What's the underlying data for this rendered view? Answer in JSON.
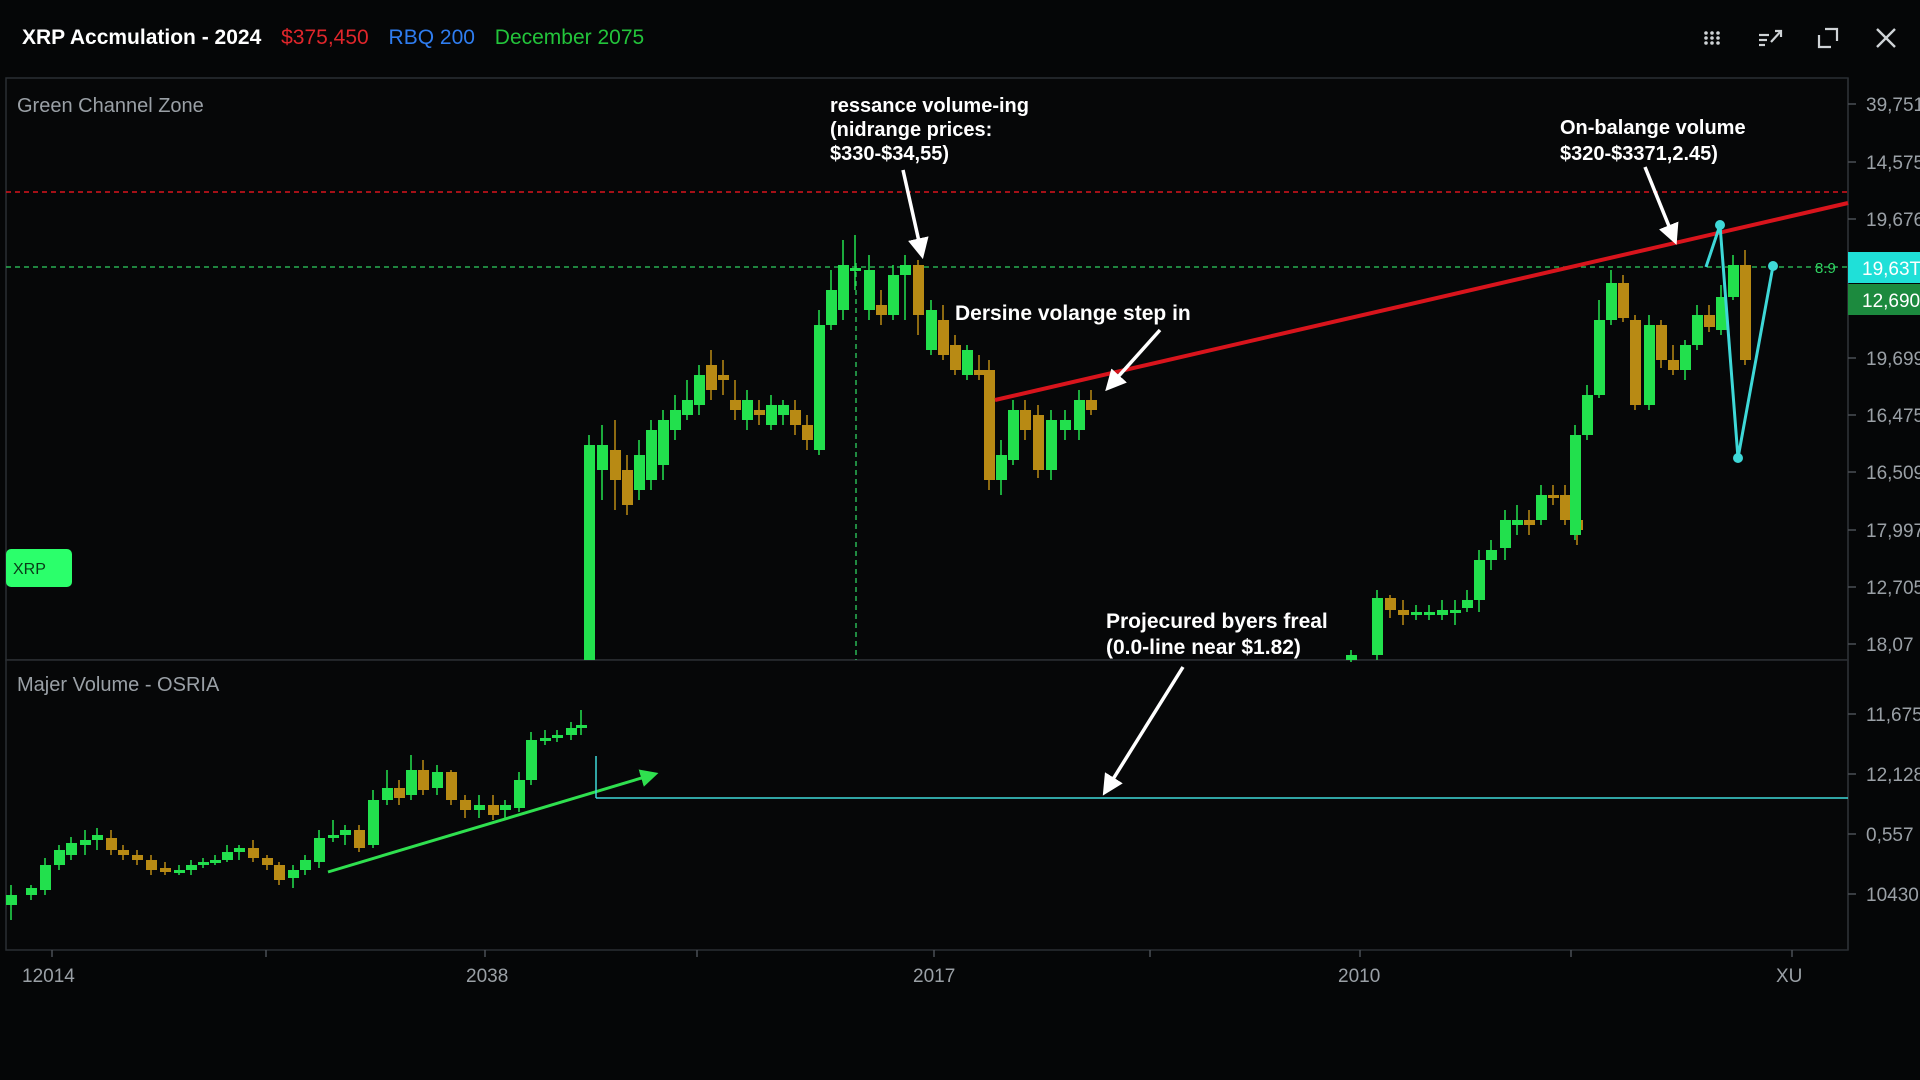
{
  "header": {
    "title": "XRP Accmulation - 2024",
    "price": "$375,450",
    "rbq": "RBQ 200",
    "date": "December 2075",
    "icons": [
      "grid-icon",
      "indicator-icon",
      "fullscreen-icon",
      "close-icon"
    ]
  },
  "colors": {
    "bull": "#22e04d",
    "bear": "#b88a14",
    "red_line": "#d8141c",
    "green_dashed": "#2fd060",
    "cyan": "#3ed8d8",
    "arrow": "#ffffff",
    "grid": "#20242a",
    "tag_green": "#2bff6b",
    "tag_cyan": "#1fe0d8",
    "tag_dark_green": "#1c8a3e"
  },
  "chart_data": {
    "type": "candlestick",
    "x_ticks": [
      "12014",
      "2038",
      "2017",
      "2010",
      "XU"
    ],
    "upper_panel": {
      "title": "Green Channel Zone",
      "y_ticks": [
        "39,751",
        "14,575",
        "19,676",
        "19,63T",
        "12,690",
        "19,699",
        "16,475",
        "16,509",
        "17,997",
        "12,705",
        "18,07"
      ],
      "price_tag_current": "19,63T",
      "price_tag_secondary": "12,690",
      "line_label": "8.9",
      "symbol_tag": "XRP",
      "annotations": [
        {
          "id": "resistance",
          "text": [
            "ressance volume-ing",
            "(nidrange prices:",
            "$330-$34,55)"
          ]
        },
        {
          "id": "decline",
          "text": [
            "Dersine volange step in"
          ]
        },
        {
          "id": "onbalance",
          "text": [
            "On-balange volume",
            "$320-$3371,2.45)"
          ]
        },
        {
          "id": "projected",
          "text": [
            "Projecured byers freal",
            "(0.0-line near $1.82)"
          ]
        }
      ]
    },
    "lower_panel": {
      "title": "Majer Volume - OSRIA",
      "y_ticks": [
        "11,675",
        "12,128",
        "0,557",
        "10430"
      ]
    }
  }
}
